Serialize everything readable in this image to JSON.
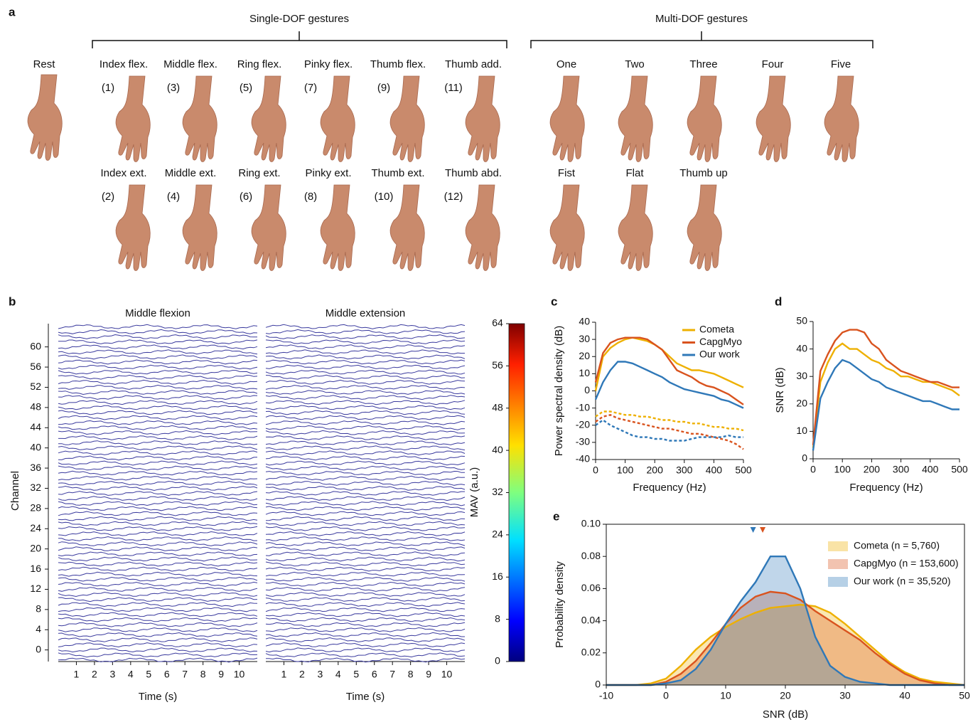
{
  "panel_a": {
    "label": "a",
    "groups": [
      "Single-DOF gestures",
      "Multi-DOF gestures"
    ],
    "rest": "Rest",
    "single_dof": [
      {
        "label": "Index flex.",
        "number": "(1)"
      },
      {
        "label": "Middle flex.",
        "number": "(3)"
      },
      {
        "label": "Ring flex.",
        "number": "(5)"
      },
      {
        "label": "Pinky flex.",
        "number": "(7)"
      },
      {
        "label": "Thumb flex.",
        "number": "(9)"
      },
      {
        "label": "Thumb add.",
        "number": "(11)"
      },
      {
        "label": "Index ext.",
        "number": "(2)"
      },
      {
        "label": "Middle ext.",
        "number": "(4)"
      },
      {
        "label": "Ring ext.",
        "number": "(6)"
      },
      {
        "label": "Pinky ext.",
        "number": "(8)"
      },
      {
        "label": "Thumb ext.",
        "number": "(10)"
      },
      {
        "label": "Thumb abd.",
        "number": "(12)"
      }
    ],
    "multi_dof": [
      "One",
      "Two",
      "Three",
      "Four",
      "Five",
      "Fist",
      "Flat",
      "Thumb up"
    ]
  },
  "chart_data": [
    {
      "type": "emg-traces",
      "panel": "b",
      "subtitles": [
        "Middle flexion",
        "Middle extension"
      ],
      "y_label": "Channel",
      "x_label": "Time (s)",
      "xlim": [
        0,
        11
      ],
      "xticks": [
        1,
        2,
        3,
        4,
        5,
        6,
        7,
        8,
        9,
        10
      ],
      "ylim": [
        -2.3,
        64.6
      ],
      "yticks": [
        0,
        4,
        8,
        12,
        16,
        20,
        24,
        28,
        32,
        36,
        40,
        44,
        48,
        52,
        56,
        60
      ],
      "trace_color": "#3b3b9e",
      "colorbar": {
        "label": "MAV (a.u.)",
        "lim": [
          0,
          64
        ],
        "ticks": [
          0,
          8,
          16,
          24,
          32,
          40,
          48,
          56,
          64
        ]
      }
    },
    {
      "type": "line",
      "panel": "c",
      "y_label": "Power spectral density (dB)",
      "x_label": "Frequency (Hz)",
      "legend": "upper right",
      "x": [
        0,
        25,
        50,
        75,
        100,
        125,
        150,
        175,
        200,
        225,
        250,
        275,
        300,
        325,
        350,
        375,
        400,
        425,
        450,
        475,
        500
      ],
      "xlim": [
        0,
        500
      ],
      "xticks": [
        0,
        100,
        200,
        300,
        400,
        500
      ],
      "ylim": [
        -40,
        40
      ],
      "yticks": [
        -40,
        -30,
        -20,
        -10,
        0,
        10,
        20,
        30,
        40
      ],
      "series": [
        {
          "name": "Cometa",
          "color": "#eeb000",
          "values": [
            0,
            20,
            25,
            28,
            30,
            31,
            30,
            29,
            27,
            24,
            20,
            16,
            14,
            12,
            12,
            11,
            10,
            8,
            6,
            4,
            2
          ]
        },
        {
          "name": "CapgMyo",
          "color": "#d9531e",
          "values": [
            5,
            22,
            28,
            30,
            31,
            31,
            31,
            30,
            27,
            24,
            18,
            12,
            10,
            8,
            5,
            3,
            2,
            0,
            -2,
            -5,
            -8
          ]
        },
        {
          "name": "Our work",
          "color": "#2f78b8",
          "values": [
            -5,
            5,
            12,
            17,
            17,
            16,
            14,
            12,
            10,
            8,
            5,
            3,
            1,
            0,
            -1,
            -2,
            -3,
            -5,
            -6,
            -8,
            -10
          ]
        },
        {
          "color": "#eeb000",
          "dash": true,
          "values": [
            -15,
            -12,
            -12,
            -13,
            -14,
            -14,
            -15,
            -15,
            -16,
            -17,
            -17,
            -18,
            -18,
            -19,
            -19,
            -20,
            -21,
            -21,
            -22,
            -22,
            -23
          ]
        },
        {
          "color": "#d9531e",
          "dash": true,
          "values": [
            -18,
            -15,
            -14,
            -16,
            -17,
            -18,
            -19,
            -20,
            -21,
            -22,
            -22,
            -23,
            -24,
            -25,
            -25,
            -26,
            -27,
            -28,
            -29,
            -31,
            -34
          ]
        },
        {
          "color": "#2f78b8",
          "dash": true,
          "values": [
            -20,
            -17,
            -20,
            -22,
            -24,
            -26,
            -27,
            -27,
            -28,
            -28,
            -29,
            -29,
            -29,
            -28,
            -27,
            -27,
            -27,
            -27,
            -26,
            -27,
            -27
          ]
        }
      ]
    },
    {
      "type": "line",
      "panel": "d",
      "y_label": "SNR (dB)",
      "x_label": "Frequency (Hz)",
      "x": [
        0,
        25,
        50,
        75,
        100,
        125,
        150,
        175,
        200,
        225,
        250,
        275,
        300,
        325,
        350,
        375,
        400,
        425,
        450,
        475,
        500
      ],
      "xlim": [
        0,
        500
      ],
      "xticks": [
        0,
        100,
        200,
        300,
        400,
        500
      ],
      "ylim": [
        0,
        50
      ],
      "yticks": [
        0,
        10,
        20,
        30,
        40,
        50
      ],
      "series": [
        {
          "color": "#eeb000",
          "values": [
            4,
            28,
            35,
            40,
            42,
            40,
            40,
            38,
            36,
            35,
            33,
            32,
            30,
            30,
            29,
            28,
            28,
            27,
            26,
            25,
            23
          ]
        },
        {
          "color": "#d9531e",
          "values": [
            5,
            32,
            38,
            43,
            46,
            47,
            47,
            46,
            42,
            40,
            36,
            34,
            32,
            31,
            30,
            29,
            28,
            28,
            27,
            26,
            26
          ]
        },
        {
          "color": "#2f78b8",
          "values": [
            3,
            22,
            28,
            33,
            36,
            35,
            33,
            31,
            29,
            28,
            26,
            25,
            24,
            23,
            22,
            21,
            21,
            20,
            19,
            18,
            18
          ]
        }
      ]
    },
    {
      "type": "density",
      "panel": "e",
      "y_label": "Probability density",
      "x_label": "SNR (dB)",
      "legend": "upper right",
      "x": [
        -10,
        -7.5,
        -5,
        -2.5,
        0,
        2.5,
        5,
        7.5,
        10,
        12.5,
        15,
        17.5,
        20,
        22.5,
        25,
        27.5,
        30,
        32.5,
        35,
        37.5,
        40,
        42.5,
        45,
        47.5,
        50
      ],
      "xlim": [
        -10,
        50
      ],
      "xticks": [
        -10,
        0,
        10,
        20,
        30,
        40,
        50
      ],
      "ylim": [
        0,
        0.1
      ],
      "yticks": [
        0,
        0.02,
        0.04,
        0.06,
        0.08,
        {
          "value": 0.1,
          "label": "0.10"
        }
      ],
      "series": [
        {
          "name": "Cometa (n = 5,760)",
          "color": "#eeb000",
          "values": [
            0,
            0,
            0,
            0.001,
            0.004,
            0.012,
            0.022,
            0.03,
            0.036,
            0.041,
            0.045,
            0.048,
            0.049,
            0.05,
            0.049,
            0.045,
            0.038,
            0.03,
            0.022,
            0.014,
            0.008,
            0.004,
            0.002,
            0.001,
            0
          ]
        },
        {
          "name": "CapgMyo (n = 153,600)",
          "color": "#d9531e",
          "median": 16.2,
          "values": [
            0,
            0,
            0,
            0,
            0.002,
            0.007,
            0.015,
            0.026,
            0.038,
            0.048,
            0.055,
            0.058,
            0.057,
            0.053,
            0.046,
            0.04,
            0.034,
            0.028,
            0.02,
            0.013,
            0.007,
            0.003,
            0.001,
            0,
            0
          ]
        },
        {
          "name": "Our work (n = 35,520)",
          "color": "#2f78b8",
          "median": 14.6,
          "values": [
            0,
            0,
            0,
            0,
            0.001,
            0.003,
            0.01,
            0.022,
            0.038,
            0.052,
            0.064,
            0.08,
            0.08,
            0.06,
            0.03,
            0.012,
            0.005,
            0.002,
            0.001,
            0,
            0,
            0,
            0,
            0,
            0
          ]
        }
      ]
    }
  ]
}
